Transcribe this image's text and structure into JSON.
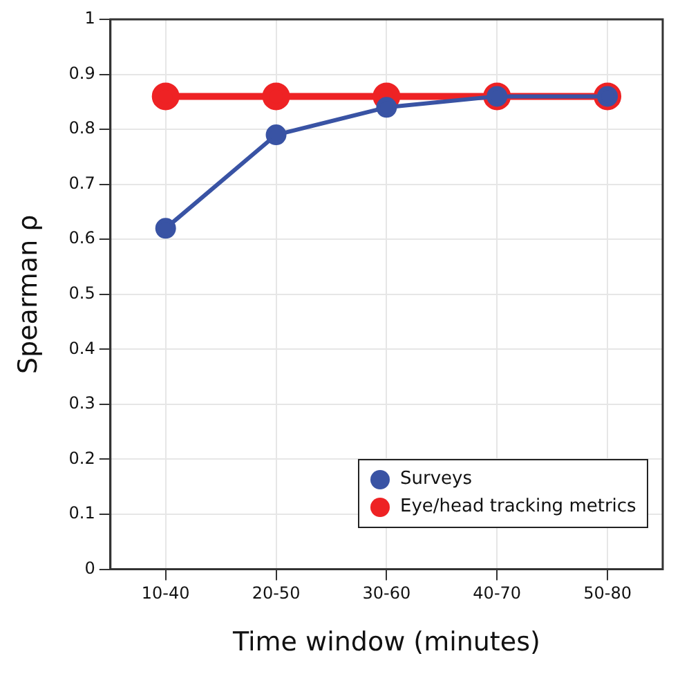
{
  "chart_data": {
    "type": "line",
    "xlabel": "Time window (minutes)",
    "ylabel": "Spearman ρ",
    "categories": [
      "10-40",
      "20-50",
      "30-60",
      "40-70",
      "50-80"
    ],
    "series": [
      {
        "name": "Surveys",
        "color": "#3953a4",
        "values": [
          0.62,
          0.79,
          0.84,
          0.86,
          0.86
        ]
      },
      {
        "name": "Eye/head tracking metrics",
        "color": "#ee2224",
        "values": [
          0.86,
          0.86,
          0.86,
          0.86,
          0.86
        ]
      }
    ],
    "ylim": [
      0,
      1
    ],
    "yticks": [
      0,
      0.1,
      0.2,
      0.3,
      0.4,
      0.5,
      0.6,
      0.7,
      0.8,
      0.9,
      1
    ],
    "grid": true,
    "legend": "bottom right",
    "marker": "circle",
    "line_style": "solid"
  }
}
